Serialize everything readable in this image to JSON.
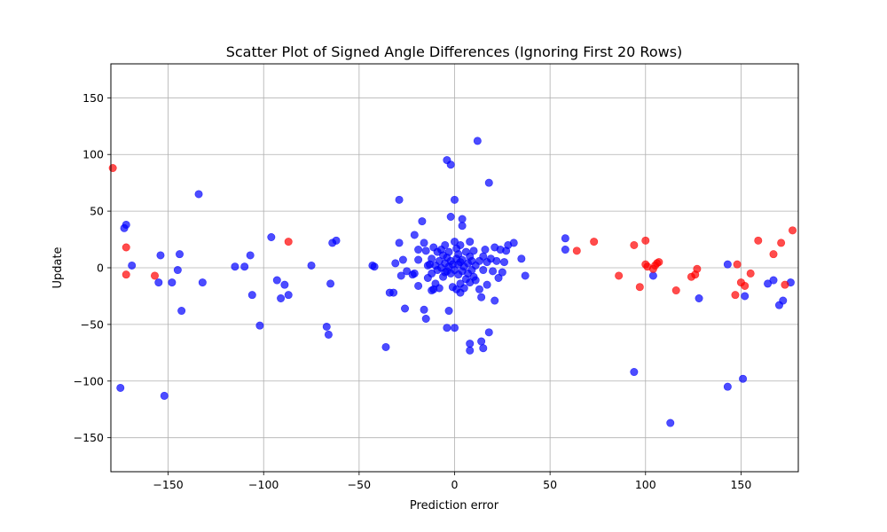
{
  "chart_data": {
    "type": "scatter",
    "title": "Scatter Plot of Signed Angle Differences (Ignoring First 20 Rows)",
    "xlabel": "Prediction error",
    "ylabel": "Update",
    "xlim": [
      -180,
      180
    ],
    "ylim": [
      -180,
      180
    ],
    "xticks": [
      -150,
      -100,
      -50,
      0,
      50,
      100,
      150
    ],
    "yticks": [
      -150,
      -100,
      -50,
      0,
      50,
      100,
      150
    ],
    "grid": true,
    "series": [
      {
        "color": "#0000ff",
        "opacity": 0.7,
        "points": [
          [
            -175,
            -106
          ],
          [
            -173,
            35
          ],
          [
            -172,
            38
          ],
          [
            -169,
            2
          ],
          [
            -155,
            -13
          ],
          [
            -154,
            11
          ],
          [
            -152,
            -113
          ],
          [
            -148,
            -13
          ],
          [
            -145,
            -2
          ],
          [
            -144,
            12
          ],
          [
            -143,
            -38
          ],
          [
            -134,
            65
          ],
          [
            -132,
            -13
          ],
          [
            -115,
            1
          ],
          [
            -110,
            1
          ],
          [
            -107,
            11
          ],
          [
            -106,
            -24
          ],
          [
            -102,
            -51
          ],
          [
            -96,
            27
          ],
          [
            -93,
            -11
          ],
          [
            -91,
            -27
          ],
          [
            -89,
            -15
          ],
          [
            -87,
            -24
          ],
          [
            -75,
            2
          ],
          [
            -67,
            -52
          ],
          [
            -66,
            -59
          ],
          [
            -65,
            -14
          ],
          [
            -64,
            22
          ],
          [
            -62,
            24
          ],
          [
            -43,
            2
          ],
          [
            -42,
            1
          ],
          [
            -36,
            -70
          ],
          [
            -34,
            -22
          ],
          [
            -32,
            -22
          ],
          [
            -31,
            4
          ],
          [
            -29,
            60
          ],
          [
            -29,
            22
          ],
          [
            -28,
            -7
          ],
          [
            -27,
            7
          ],
          [
            -26,
            -36
          ],
          [
            -25,
            -3
          ],
          [
            -22,
            -6
          ],
          [
            -21,
            -5
          ],
          [
            -21,
            29
          ],
          [
            -19,
            -16
          ],
          [
            -19,
            7
          ],
          [
            -19,
            16
          ],
          [
            -17,
            41
          ],
          [
            -16,
            -37
          ],
          [
            -16,
            22
          ],
          [
            -15,
            -45
          ],
          [
            -15,
            15
          ],
          [
            -14,
            -9
          ],
          [
            -14,
            2
          ],
          [
            -13,
            3
          ],
          [
            -12,
            -20
          ],
          [
            -12,
            -5
          ],
          [
            -12,
            8
          ],
          [
            -11,
            18
          ],
          [
            -11,
            -19
          ],
          [
            -10,
            -14
          ],
          [
            -10,
            2
          ],
          [
            -9,
            -2
          ],
          [
            -9,
            14
          ],
          [
            -8,
            -18
          ],
          [
            -8,
            6
          ],
          [
            -7,
            0
          ],
          [
            -7,
            16
          ],
          [
            -6,
            -8
          ],
          [
            -6,
            11
          ],
          [
            -5,
            -4
          ],
          [
            -5,
            4
          ],
          [
            -5,
            20
          ],
          [
            -4,
            95
          ],
          [
            -4,
            -53
          ],
          [
            -4,
            -3
          ],
          [
            -4,
            9
          ],
          [
            -3,
            -38
          ],
          [
            -3,
            14
          ],
          [
            -3,
            1
          ],
          [
            -2,
            91
          ],
          [
            -2,
            45
          ],
          [
            -2,
            -5
          ],
          [
            -2,
            6
          ],
          [
            -1,
            -17
          ],
          [
            -1,
            3
          ],
          [
            0,
            60
          ],
          [
            0,
            -53
          ],
          [
            0,
            23
          ],
          [
            0,
            -2
          ],
          [
            1,
            8
          ],
          [
            1,
            -19
          ],
          [
            1,
            17
          ],
          [
            2,
            -6
          ],
          [
            2,
            3
          ],
          [
            2,
            12
          ],
          [
            3,
            -22
          ],
          [
            3,
            -14
          ],
          [
            3,
            5
          ],
          [
            3,
            20
          ],
          [
            4,
            43
          ],
          [
            4,
            37
          ],
          [
            4,
            -3
          ],
          [
            4,
            7
          ],
          [
            5,
            -18
          ],
          [
            5,
            1
          ],
          [
            6,
            -10
          ],
          [
            6,
            14
          ],
          [
            7,
            -5
          ],
          [
            7,
            4
          ],
          [
            8,
            23
          ],
          [
            8,
            -67
          ],
          [
            8,
            -73
          ],
          [
            8,
            -13
          ],
          [
            8,
            10
          ],
          [
            9,
            -2
          ],
          [
            9,
            6
          ],
          [
            10,
            -8
          ],
          [
            10,
            15
          ],
          [
            11,
            2
          ],
          [
            11,
            -11
          ],
          [
            12,
            112
          ],
          [
            13,
            -19
          ],
          [
            13,
            6
          ],
          [
            14,
            -26
          ],
          [
            14,
            -65
          ],
          [
            15,
            -71
          ],
          [
            15,
            -2
          ],
          [
            15,
            10
          ],
          [
            16,
            16
          ],
          [
            17,
            -15
          ],
          [
            17,
            5
          ],
          [
            18,
            75
          ],
          [
            18,
            -57
          ],
          [
            19,
            8
          ],
          [
            20,
            -3
          ],
          [
            21,
            -29
          ],
          [
            21,
            18
          ],
          [
            22,
            6
          ],
          [
            23,
            -9
          ],
          [
            24,
            16
          ],
          [
            25,
            -4
          ],
          [
            26,
            5
          ],
          [
            27,
            15
          ],
          [
            28,
            20
          ],
          [
            31,
            22
          ],
          [
            35,
            8
          ],
          [
            37,
            -7
          ],
          [
            58,
            26
          ],
          [
            58,
            16
          ],
          [
            94,
            -92
          ],
          [
            104,
            -7
          ],
          [
            113,
            -137
          ],
          [
            128,
            -27
          ],
          [
            143,
            -105
          ],
          [
            143,
            3
          ],
          [
            151,
            -98
          ],
          [
            152,
            -25
          ],
          [
            164,
            -14
          ],
          [
            167,
            -11
          ],
          [
            170,
            -33
          ],
          [
            172,
            -29
          ],
          [
            176,
            -13
          ]
        ]
      },
      {
        "color": "#ff0000",
        "opacity": 0.7,
        "points": [
          [
            -179,
            88
          ],
          [
            -172,
            18
          ],
          [
            -172,
            -6
          ],
          [
            -157,
            -7
          ],
          [
            -87,
            23
          ],
          [
            64,
            15
          ],
          [
            73,
            23
          ],
          [
            86,
            -7
          ],
          [
            94,
            20
          ],
          [
            97,
            -17
          ],
          [
            100,
            24
          ],
          [
            100,
            3
          ],
          [
            101,
            1
          ],
          [
            104,
            -1
          ],
          [
            105,
            2
          ],
          [
            106,
            4
          ],
          [
            107,
            5
          ],
          [
            116,
            -20
          ],
          [
            124,
            -8
          ],
          [
            126,
            -6
          ],
          [
            127,
            -1
          ],
          [
            147,
            -24
          ],
          [
            148,
            3
          ],
          [
            150,
            -13
          ],
          [
            152,
            -16
          ],
          [
            155,
            -5
          ],
          [
            159,
            24
          ],
          [
            167,
            12
          ],
          [
            171,
            22
          ],
          [
            173,
            -15
          ],
          [
            177,
            33
          ]
        ]
      }
    ]
  }
}
